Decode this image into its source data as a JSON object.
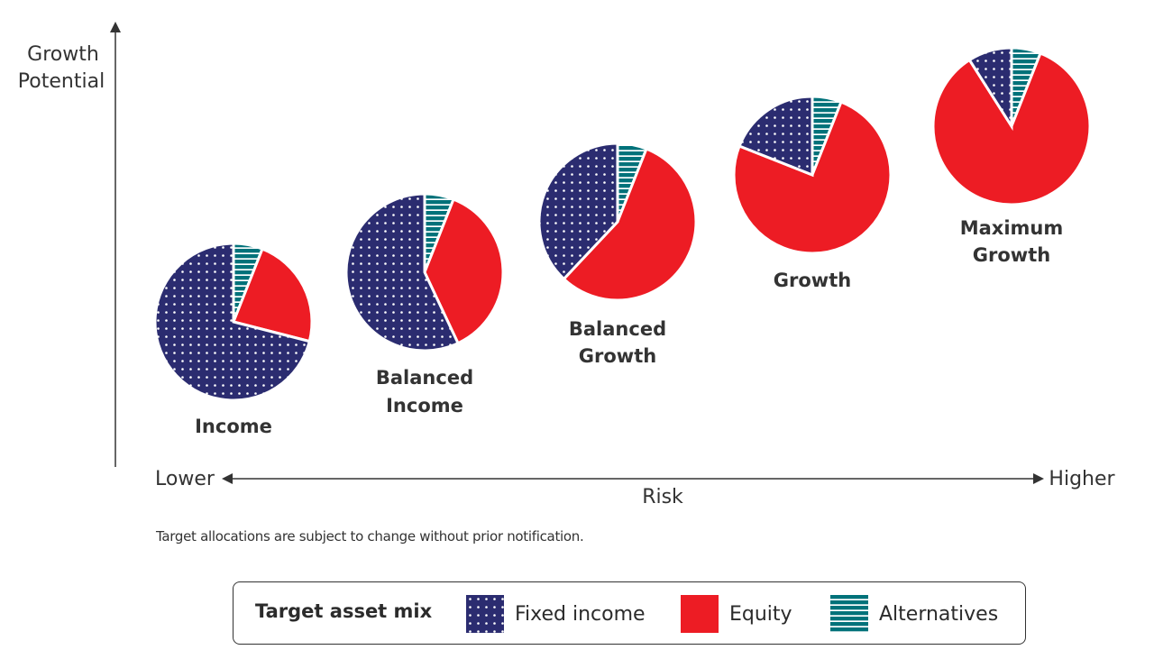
{
  "chart_data": {
    "type": "pie",
    "title": "",
    "ylabel": "Growth Potential",
    "xlabel": "Risk",
    "x_axis_ends": {
      "left": "Lower",
      "right": "Higher"
    },
    "categories": [
      "Fixed income",
      "Equity",
      "Alternatives"
    ],
    "colors": {
      "Fixed income": "#2b2c70",
      "Equity": "#ed1c24",
      "Alternatives": "#00727a"
    },
    "pies": [
      {
        "label": [
          "Income"
        ],
        "values": {
          "Alternatives": 6,
          "Equity": 23,
          "Fixed income": 71
        }
      },
      {
        "label": [
          "Balanced",
          "Income"
        ],
        "values": {
          "Alternatives": 6,
          "Equity": 37,
          "Fixed income": 57
        }
      },
      {
        "label": [
          "Balanced",
          "Growth"
        ],
        "values": {
          "Alternatives": 6,
          "Equity": 56,
          "Fixed income": 38
        }
      },
      {
        "label": [
          "Growth"
        ],
        "values": {
          "Alternatives": 6,
          "Equity": 75,
          "Fixed income": 19
        }
      },
      {
        "label": [
          "Maximum",
          "Growth"
        ],
        "values": {
          "Alternatives": 6,
          "Equity": 85,
          "Fixed income": 9
        }
      }
    ]
  },
  "note": "Target allocations are subject to change without prior notification.",
  "legend": {
    "title": "Target asset mix",
    "items": [
      "Fixed income",
      "Equity",
      "Alternatives"
    ]
  }
}
